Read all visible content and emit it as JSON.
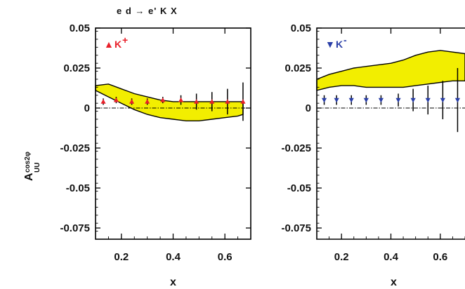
{
  "figure": {
    "title": "e d → e' K  X",
    "ylabel": "A",
    "ylabel_superscript": "cos2φ",
    "ylabel_subscript": "UU"
  },
  "chart_data": [
    {
      "type": "scatter",
      "panel": "left",
      "legend": {
        "marker": "▲",
        "label": "K",
        "charge": "+",
        "color": "#e8202a",
        "placement": "top-left"
      },
      "xlabel": "x",
      "xlim": [
        0.1,
        0.7
      ],
      "ylim": [
        -0.082,
        0.05
      ],
      "x_ticks": [
        0.2,
        0.4,
        0.6
      ],
      "x_tick_labels": [
        "0.2",
        "0.4",
        "0.6"
      ],
      "y_ticks": [
        0.05,
        0.025,
        0,
        -0.025,
        -0.05,
        -0.075
      ],
      "y_tick_labels": [
        "0.05",
        "0.025",
        "0",
        "-0.025",
        "-0.05",
        "-0.075"
      ],
      "zero_line": "dash-dot",
      "series": [
        {
          "kind": "points",
          "marker": "triangle-up",
          "color": "#e8202a",
          "x": [
            0.13,
            0.18,
            0.24,
            0.3,
            0.36,
            0.43,
            0.49,
            0.55,
            0.61,
            0.67
          ],
          "y": [
            0.004,
            0.005,
            0.004,
            0.004,
            0.005,
            0.005,
            0.004,
            0.004,
            0.004,
            0.004
          ],
          "err": [
            0.002,
            0.002,
            0.002,
            0.002,
            0.002,
            0.003,
            0.005,
            0.006,
            0.008,
            0.012
          ]
        },
        {
          "kind": "band",
          "color": "#f2ee00",
          "x": [
            0.1,
            0.15,
            0.2,
            0.25,
            0.3,
            0.35,
            0.4,
            0.45,
            0.5,
            0.55,
            0.6,
            0.65,
            0.67
          ],
          "upper": [
            0.014,
            0.015,
            0.012,
            0.009,
            0.007,
            0.005,
            0.004,
            0.004,
            0.004,
            0.004,
            0.004,
            0.004,
            0.004
          ],
          "lower": [
            0.011,
            0.007,
            0.003,
            -0.001,
            -0.004,
            -0.006,
            -0.007,
            -0.008,
            -0.008,
            -0.007,
            -0.006,
            -0.005,
            -0.004
          ]
        }
      ]
    },
    {
      "type": "scatter",
      "panel": "right",
      "legend": {
        "marker": "▼",
        "label": "K",
        "charge": "-",
        "color": "#2a3fa8",
        "placement": "top-left"
      },
      "xlabel": "x",
      "xlim": [
        0.1,
        0.7
      ],
      "ylim": [
        -0.082,
        0.05
      ],
      "x_ticks": [
        0.2,
        0.4,
        0.6
      ],
      "x_tick_labels": [
        "0.2",
        "0.4",
        "0.6"
      ],
      "y_ticks": [
        0.05,
        0.025,
        0,
        -0.025,
        -0.05,
        -0.075
      ],
      "y_tick_labels": [
        "0.05",
        "0.025",
        "0",
        "-0.025",
        "-0.05",
        "-0.075"
      ],
      "zero_line": "dash-dot",
      "series": [
        {
          "kind": "points",
          "marker": "triangle-down",
          "color": "#2a3fa8",
          "x": [
            0.13,
            0.18,
            0.24,
            0.3,
            0.36,
            0.43,
            0.49,
            0.55,
            0.61,
            0.67
          ],
          "y": [
            0.005,
            0.005,
            0.005,
            0.005,
            0.005,
            0.005,
            0.005,
            0.005,
            0.005,
            0.005
          ],
          "err": [
            0.003,
            0.003,
            0.003,
            0.003,
            0.003,
            0.004,
            0.007,
            0.009,
            0.012,
            0.02
          ]
        },
        {
          "kind": "band",
          "color": "#f2ee00",
          "x": [
            0.1,
            0.15,
            0.2,
            0.25,
            0.3,
            0.35,
            0.4,
            0.45,
            0.5,
            0.55,
            0.6,
            0.65,
            0.7
          ],
          "upper": [
            0.018,
            0.021,
            0.023,
            0.025,
            0.026,
            0.027,
            0.028,
            0.03,
            0.033,
            0.035,
            0.036,
            0.035,
            0.034
          ],
          "lower": [
            0.011,
            0.013,
            0.014,
            0.014,
            0.013,
            0.013,
            0.013,
            0.013,
            0.014,
            0.015,
            0.016,
            0.017,
            0.017
          ]
        }
      ]
    }
  ]
}
